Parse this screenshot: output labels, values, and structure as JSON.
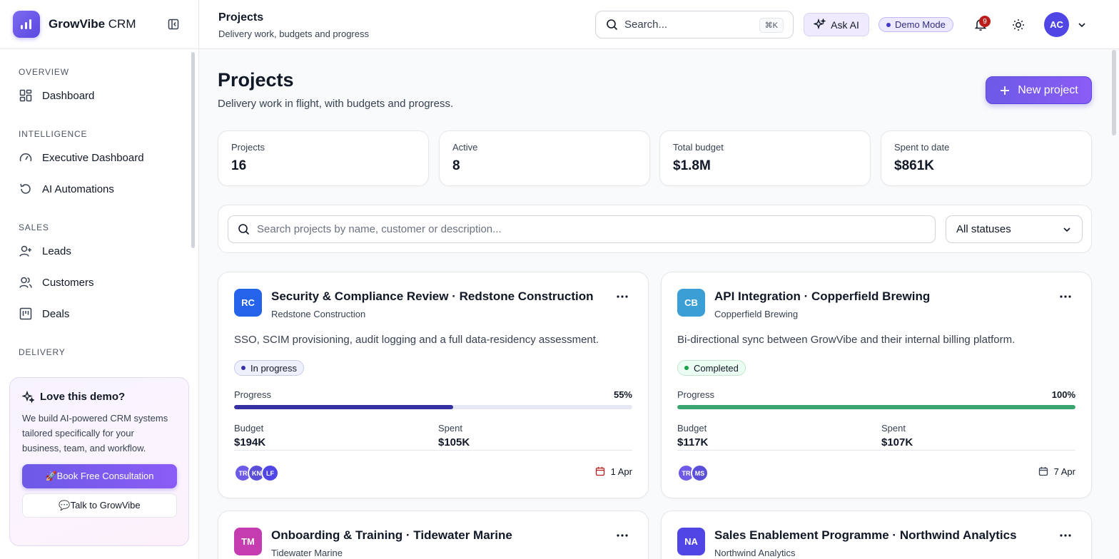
{
  "brand": {
    "name": "GrowVibe",
    "suffix": "CRM"
  },
  "sidebar": {
    "sections": [
      {
        "label": "OVERVIEW",
        "items": [
          {
            "label": "Dashboard",
            "icon": "grid-icon"
          }
        ]
      },
      {
        "label": "INTELLIGENCE",
        "items": [
          {
            "label": "Executive Dashboard",
            "icon": "gauge-icon"
          },
          {
            "label": "AI Automations",
            "icon": "refresh-icon"
          }
        ]
      },
      {
        "label": "SALES",
        "items": [
          {
            "label": "Leads",
            "icon": "user-plus-icon"
          },
          {
            "label": "Customers",
            "icon": "users-icon"
          },
          {
            "label": "Deals",
            "icon": "kanban-icon"
          }
        ]
      },
      {
        "label": "DELIVERY",
        "items": []
      }
    ],
    "promo": {
      "title": "Love this demo?",
      "text": "We build AI-powered CRM systems tailored specifically for your business, team, and workflow.",
      "primary_button": "🚀Book Free Consultation",
      "secondary_button": "💬Talk to GrowVibe"
    }
  },
  "topbar": {
    "title": "Projects",
    "subtitle": "Delivery work, budgets and progress",
    "search_placeholder": "Search...",
    "search_shortcut": "⌘K",
    "ask_ai_label": "Ask AI",
    "demo_badge": "Demo Mode",
    "notification_count": "9",
    "user_initials": "AC"
  },
  "page": {
    "title": "Projects",
    "description": "Delivery work in flight, with budgets and progress.",
    "new_button": "New project"
  },
  "stats": [
    {
      "label": "Projects",
      "value": "16"
    },
    {
      "label": "Active",
      "value": "8"
    },
    {
      "label": "Total budget",
      "value": "$1.8M"
    },
    {
      "label": "Spent to date",
      "value": "$861K"
    }
  ],
  "filters": {
    "search_placeholder": "Search projects by name, customer or description...",
    "status_selected": "All statuses"
  },
  "labels": {
    "progress": "Progress",
    "budget": "Budget",
    "spent": "Spent"
  },
  "colors": {
    "accent": "#6d5ae6",
    "in_progress": "#3730a3",
    "completed": "#3aa56f"
  },
  "projects": [
    {
      "initials": "RC",
      "avatar_color": "#2563eb",
      "title": "Security & Compliance Review · Redstone Construction",
      "customer": "Redstone Construction",
      "description": "SSO, SCIM provisioning, audit logging and a full data-residency assessment.",
      "status": "In progress",
      "progress": 0.55,
      "progress_label": "55%",
      "budget": "$194K",
      "spent": "$105K",
      "team": [
        {
          "initials": "TR",
          "color": "#6d5ae6"
        },
        {
          "initials": "KN",
          "color": "#5b4fd8"
        },
        {
          "initials": "LF",
          "color": "#4f46e5"
        }
      ],
      "due": "1 Apr"
    },
    {
      "initials": "CB",
      "avatar_color": "#3b9ed4",
      "title": "API Integration · Copperfield Brewing",
      "customer": "Copperfield Brewing",
      "description": "Bi-directional sync between GrowVibe and their internal billing platform.",
      "status": "Completed",
      "progress": 1.0,
      "progress_label": "100%",
      "budget": "$117K",
      "spent": "$107K",
      "team": [
        {
          "initials": "TR",
          "color": "#6d5ae6"
        },
        {
          "initials": "MS",
          "color": "#5b4fd8"
        }
      ],
      "due": "7 Apr"
    },
    {
      "initials": "TM",
      "avatar_color": "#c53bb0",
      "title": "Onboarding & Training · Tidewater Marine",
      "customer": "Tidewater Marine"
    },
    {
      "initials": "NA",
      "avatar_color": "#4f46e5",
      "title": "Sales Enablement Programme · Northwind Analytics",
      "customer": "Northwind Analytics"
    }
  ]
}
